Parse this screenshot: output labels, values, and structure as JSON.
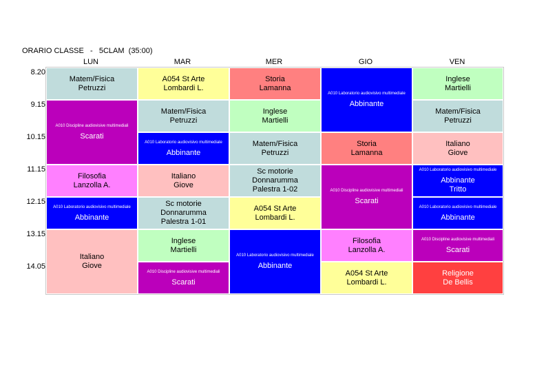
{
  "header": {
    "title": "ORARIO CLASSE   -   5CLAM  (35:00)"
  },
  "days": [
    "LUN",
    "MAR",
    "MER",
    "GIO",
    "VEN"
  ],
  "times": [
    "8.20",
    "9.15",
    "10.15",
    "11.15",
    "12.15",
    "13.15",
    "14.05"
  ],
  "lessons": [
    {
      "subject": "Matem/Fisica",
      "teacher": "Petruzzi",
      "color": "#c0dcdc"
    },
    {
      "subject": "",
      "note": "A010 Discipline audiovisive multimediali",
      "teacher": "Scarati",
      "color": "#bb00bb"
    },
    {
      "subject": "Filosofia",
      "teacher": "Lanzolla A.",
      "color": "#ff80ff"
    },
    {
      "subject": "",
      "note": "A010 Laboratorio audiovisivo multimediale",
      "teacher": "Abbinante",
      "color": "#0000ff"
    },
    {
      "subject": "Italiano",
      "teacher": "Giove",
      "color": "#ffc0c0"
    },
    {
      "subject": "A054 St Arte",
      "teacher": "Lombardi L.",
      "color": "#ffff99"
    },
    {
      "subject": "Matem/Fisica",
      "teacher": "Petruzzi",
      "color": "#c0dcdc"
    },
    {
      "subject": "",
      "note": "A010 Laboratorio audiovisivo multimediale",
      "teacher": "Abbinante",
      "color": "#0000ff"
    },
    {
      "subject": "Italiano",
      "teacher": "Giove",
      "color": "#ffc0c0"
    },
    {
      "subject": "Sc motorie",
      "teacher": "Donnarumma",
      "room": "Palestra 1-01",
      "color": "#c0dcdc"
    },
    {
      "subject": "Inglese",
      "teacher": "Martielli",
      "color": "#c0ffc0"
    },
    {
      "subject": "",
      "note": "A010 Discipline audiovisive multimediali",
      "teacher": "Scarati",
      "color": "#bb00bb"
    },
    {
      "subject": "Storia",
      "teacher": "Lamanna",
      "color": "#ff8080"
    },
    {
      "subject": "Inglese",
      "teacher": "Martielli",
      "color": "#c0ffc0"
    },
    {
      "subject": "Matem/Fisica",
      "teacher": "Petruzzi",
      "color": "#c0dcdc"
    },
    {
      "subject": "Sc motorie",
      "teacher": "Donnarumma",
      "room": "Palestra 1-02",
      "color": "#c0dcdc"
    },
    {
      "subject": "A054 St Arte",
      "teacher": "Lombardi L.",
      "color": "#ffff99"
    },
    {
      "subject": "",
      "note": "A010 Laboratorio audiovisivo multimediale",
      "teacher": "Abbinante",
      "color": "#0000ff"
    },
    {
      "subject": "",
      "note": "A010 Laboratorio audiovisivo multimediale",
      "teacher": "Abbinante",
      "color": "#0000ff"
    },
    {
      "subject": "Storia",
      "teacher": "Lamanna",
      "color": "#ff8080"
    },
    {
      "subject": "",
      "note": "A010 Discipline audiovisive multimediali",
      "teacher": "Scarati",
      "color": "#bb00bb"
    },
    {
      "subject": "Filosofia",
      "teacher": "Lanzolla A.",
      "color": "#ff80ff"
    },
    {
      "subject": "A054 St Arte",
      "teacher": "Lombardi L.",
      "color": "#ffff99"
    },
    {
      "subject": "Inglese",
      "teacher": "Martielli",
      "color": "#c0ffc0"
    },
    {
      "subject": "Matem/Fisica",
      "teacher": "Petruzzi",
      "color": "#c0dcdc"
    },
    {
      "subject": "Italiano",
      "teacher": "Giove",
      "color": "#ffc0c0"
    },
    {
      "subject": "",
      "note": "A010 Laboratorio audiovisivo multimediale",
      "teacher": "Abbinante",
      "extra": "Tritto",
      "color": "#0000ff"
    },
    {
      "subject": "",
      "note": "A010 Laboratorio audiovisivo multimediale",
      "teacher": "Abbinante",
      "color": "#0000ff"
    },
    {
      "subject": "",
      "note": "A010 Discipline audiovisive multimediali",
      "teacher": "Scarati",
      "color": "#bb00bb"
    },
    {
      "subject": "Religione",
      "teacher": "De Bellis",
      "color": "#ff4040"
    }
  ]
}
